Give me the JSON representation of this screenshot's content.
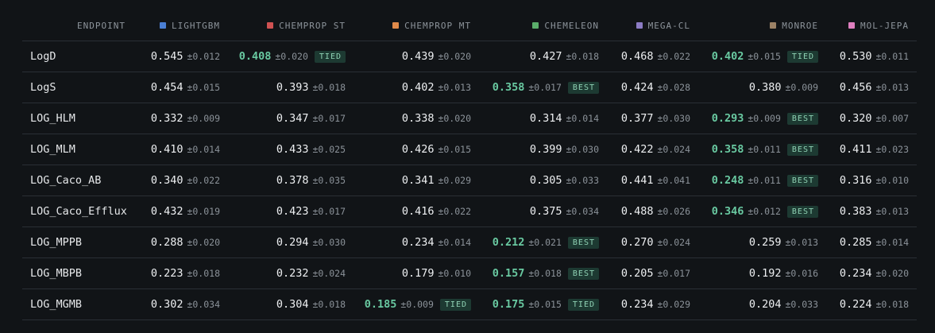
{
  "columns": [
    {
      "label": "ENDPOINT"
    },
    {
      "label": "LIGHTGBM",
      "color": "#4a7fd4"
    },
    {
      "label": "CHEMPROP ST",
      "color": "#d05252"
    },
    {
      "label": "CHEMPROP MT",
      "color": "#e08a4a"
    },
    {
      "label": "CHEMELEON",
      "color": "#5aad6a"
    },
    {
      "label": "MEGA-CL",
      "color": "#8c7cc4"
    },
    {
      "label": "MONROE",
      "color": "#9c8266"
    },
    {
      "label": "MOL-JEPA",
      "color": "#df7fbf"
    }
  ],
  "rows": [
    {
      "endpoint": "LogD",
      "cells": [
        {
          "mean": "0.545",
          "std": "±0.012",
          "highlight": false,
          "badge": ""
        },
        {
          "mean": "0.408",
          "std": "±0.020",
          "highlight": true,
          "badge": "TIED"
        },
        {
          "mean": "0.439",
          "std": "±0.020",
          "highlight": false,
          "badge": ""
        },
        {
          "mean": "0.427",
          "std": "±0.018",
          "highlight": false,
          "badge": ""
        },
        {
          "mean": "0.468",
          "std": "±0.022",
          "highlight": false,
          "badge": ""
        },
        {
          "mean": "0.402",
          "std": "±0.015",
          "highlight": true,
          "badge": "TIED"
        },
        {
          "mean": "0.530",
          "std": "±0.011",
          "highlight": false,
          "badge": ""
        }
      ]
    },
    {
      "endpoint": "LogS",
      "cells": [
        {
          "mean": "0.454",
          "std": "±0.015",
          "highlight": false,
          "badge": ""
        },
        {
          "mean": "0.393",
          "std": "±0.018",
          "highlight": false,
          "badge": ""
        },
        {
          "mean": "0.402",
          "std": "±0.013",
          "highlight": false,
          "badge": ""
        },
        {
          "mean": "0.358",
          "std": "±0.017",
          "highlight": true,
          "badge": "BEST"
        },
        {
          "mean": "0.424",
          "std": "±0.028",
          "highlight": false,
          "badge": ""
        },
        {
          "mean": "0.380",
          "std": "±0.009",
          "highlight": false,
          "badge": ""
        },
        {
          "mean": "0.456",
          "std": "±0.013",
          "highlight": false,
          "badge": ""
        }
      ]
    },
    {
      "endpoint": "LOG_HLM",
      "cells": [
        {
          "mean": "0.332",
          "std": "±0.009",
          "highlight": false,
          "badge": ""
        },
        {
          "mean": "0.347",
          "std": "±0.017",
          "highlight": false,
          "badge": ""
        },
        {
          "mean": "0.338",
          "std": "±0.020",
          "highlight": false,
          "badge": ""
        },
        {
          "mean": "0.314",
          "std": "±0.014",
          "highlight": false,
          "badge": ""
        },
        {
          "mean": "0.377",
          "std": "±0.030",
          "highlight": false,
          "badge": ""
        },
        {
          "mean": "0.293",
          "std": "±0.009",
          "highlight": true,
          "badge": "BEST"
        },
        {
          "mean": "0.320",
          "std": "±0.007",
          "highlight": false,
          "badge": ""
        }
      ]
    },
    {
      "endpoint": "LOG_MLM",
      "cells": [
        {
          "mean": "0.410",
          "std": "±0.014",
          "highlight": false,
          "badge": ""
        },
        {
          "mean": "0.433",
          "std": "±0.025",
          "highlight": false,
          "badge": ""
        },
        {
          "mean": "0.426",
          "std": "±0.015",
          "highlight": false,
          "badge": ""
        },
        {
          "mean": "0.399",
          "std": "±0.030",
          "highlight": false,
          "badge": ""
        },
        {
          "mean": "0.422",
          "std": "±0.024",
          "highlight": false,
          "badge": ""
        },
        {
          "mean": "0.358",
          "std": "±0.011",
          "highlight": true,
          "badge": "BEST"
        },
        {
          "mean": "0.411",
          "std": "±0.023",
          "highlight": false,
          "badge": ""
        }
      ]
    },
    {
      "endpoint": "LOG_Caco_AB",
      "cells": [
        {
          "mean": "0.340",
          "std": "±0.022",
          "highlight": false,
          "badge": ""
        },
        {
          "mean": "0.378",
          "std": "±0.035",
          "highlight": false,
          "badge": ""
        },
        {
          "mean": "0.341",
          "std": "±0.029",
          "highlight": false,
          "badge": ""
        },
        {
          "mean": "0.305",
          "std": "±0.033",
          "highlight": false,
          "badge": ""
        },
        {
          "mean": "0.441",
          "std": "±0.041",
          "highlight": false,
          "badge": ""
        },
        {
          "mean": "0.248",
          "std": "±0.011",
          "highlight": true,
          "badge": "BEST"
        },
        {
          "mean": "0.316",
          "std": "±0.010",
          "highlight": false,
          "badge": ""
        }
      ]
    },
    {
      "endpoint": "LOG_Caco_Efflux",
      "cells": [
        {
          "mean": "0.432",
          "std": "±0.019",
          "highlight": false,
          "badge": ""
        },
        {
          "mean": "0.423",
          "std": "±0.017",
          "highlight": false,
          "badge": ""
        },
        {
          "mean": "0.416",
          "std": "±0.022",
          "highlight": false,
          "badge": ""
        },
        {
          "mean": "0.375",
          "std": "±0.034",
          "highlight": false,
          "badge": ""
        },
        {
          "mean": "0.488",
          "std": "±0.026",
          "highlight": false,
          "badge": ""
        },
        {
          "mean": "0.346",
          "std": "±0.012",
          "highlight": true,
          "badge": "BEST"
        },
        {
          "mean": "0.383",
          "std": "±0.013",
          "highlight": false,
          "badge": ""
        }
      ]
    },
    {
      "endpoint": "LOG_MPPB",
      "cells": [
        {
          "mean": "0.288",
          "std": "±0.020",
          "highlight": false,
          "badge": ""
        },
        {
          "mean": "0.294",
          "std": "±0.030",
          "highlight": false,
          "badge": ""
        },
        {
          "mean": "0.234",
          "std": "±0.014",
          "highlight": false,
          "badge": ""
        },
        {
          "mean": "0.212",
          "std": "±0.021",
          "highlight": true,
          "badge": "BEST"
        },
        {
          "mean": "0.270",
          "std": "±0.024",
          "highlight": false,
          "badge": ""
        },
        {
          "mean": "0.259",
          "std": "±0.013",
          "highlight": false,
          "badge": ""
        },
        {
          "mean": "0.285",
          "std": "±0.014",
          "highlight": false,
          "badge": ""
        }
      ]
    },
    {
      "endpoint": "LOG_MBPB",
      "cells": [
        {
          "mean": "0.223",
          "std": "±0.018",
          "highlight": false,
          "badge": ""
        },
        {
          "mean": "0.232",
          "std": "±0.024",
          "highlight": false,
          "badge": ""
        },
        {
          "mean": "0.179",
          "std": "±0.010",
          "highlight": false,
          "badge": ""
        },
        {
          "mean": "0.157",
          "std": "±0.018",
          "highlight": true,
          "badge": "BEST"
        },
        {
          "mean": "0.205",
          "std": "±0.017",
          "highlight": false,
          "badge": ""
        },
        {
          "mean": "0.192",
          "std": "±0.016",
          "highlight": false,
          "badge": ""
        },
        {
          "mean": "0.234",
          "std": "±0.020",
          "highlight": false,
          "badge": ""
        }
      ]
    },
    {
      "endpoint": "LOG_MGMB",
      "cells": [
        {
          "mean": "0.302",
          "std": "±0.034",
          "highlight": false,
          "badge": ""
        },
        {
          "mean": "0.304",
          "std": "±0.018",
          "highlight": false,
          "badge": ""
        },
        {
          "mean": "0.185",
          "std": "±0.009",
          "highlight": true,
          "badge": "TIED"
        },
        {
          "mean": "0.175",
          "std": "±0.015",
          "highlight": true,
          "badge": "TIED"
        },
        {
          "mean": "0.234",
          "std": "±0.029",
          "highlight": false,
          "badge": ""
        },
        {
          "mean": "0.204",
          "std": "±0.033",
          "highlight": false,
          "badge": ""
        },
        {
          "mean": "0.224",
          "std": "±0.018",
          "highlight": false,
          "badge": ""
        }
      ]
    }
  ]
}
